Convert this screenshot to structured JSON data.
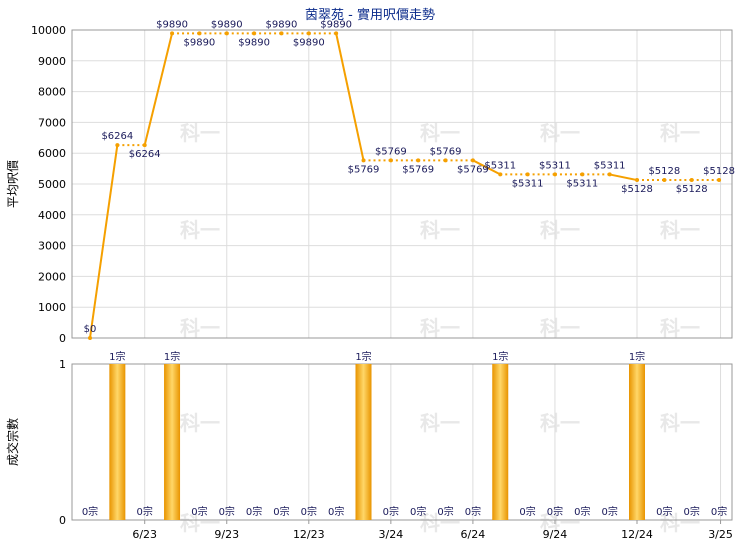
{
  "chart_data": [
    {
      "type": "line",
      "title": "茵翠苑 - 實用呎價走勢",
      "ylabel": "平均呎價",
      "ylim": [
        0,
        10000
      ],
      "yticks": [
        0,
        1000,
        2000,
        3000,
        4000,
        5000,
        6000,
        7000,
        8000,
        9000,
        10000
      ],
      "x_tick_labels": [
        "6/23",
        "9/23",
        "12/23",
        "3/24",
        "6/24",
        "9/24",
        "12/24",
        "3/25"
      ],
      "series": [
        {
          "values": [
            0,
            6264,
            6264,
            9890,
            9890,
            9890,
            9890,
            9890,
            9890,
            9890,
            5769,
            5769,
            5769,
            5769,
            5769,
            5311,
            5311,
            5311,
            5311,
            5311,
            5128,
            5128,
            5128,
            5128
          ],
          "labels": [
            "$0",
            "$6264",
            "$6264",
            "$9890",
            "$9890",
            "$9890",
            "$9890",
            "$9890",
            "$9890",
            "$9890",
            "$5769",
            "$5769",
            "$5769",
            "$5769",
            "$5769",
            "$5311",
            "$5311",
            "$5311",
            "$5311",
            "$5311",
            "$5128",
            "$5128",
            "$5128",
            "$5128"
          ]
        }
      ],
      "line_color": "#f5a000",
      "grid": true
    },
    {
      "type": "bar",
      "ylabel": "成交宗數",
      "ylim": [
        0,
        1
      ],
      "yticks": [
        0,
        1
      ],
      "x_tick_labels": [
        "6/23",
        "9/23",
        "12/23",
        "3/24",
        "6/24",
        "9/24",
        "12/24",
        "3/25"
      ],
      "values": [
        0,
        1,
        0,
        1,
        0,
        0,
        0,
        0,
        0,
        0,
        1,
        0,
        0,
        0,
        0,
        1,
        0,
        0,
        0,
        0,
        1,
        0,
        0,
        0
      ],
      "labels": [
        "0宗",
        "1宗",
        "0宗",
        "1宗",
        "0宗",
        "0宗",
        "0宗",
        "0宗",
        "0宗",
        "0宗",
        "1宗",
        "0宗",
        "0宗",
        "0宗",
        "0宗",
        "1宗",
        "0宗",
        "0宗",
        "0宗",
        "0宗",
        "1宗",
        "0宗",
        "0宗",
        "0宗"
      ],
      "bar_color": "#f5a000",
      "grid": true
    }
  ],
  "watermark": "科一"
}
